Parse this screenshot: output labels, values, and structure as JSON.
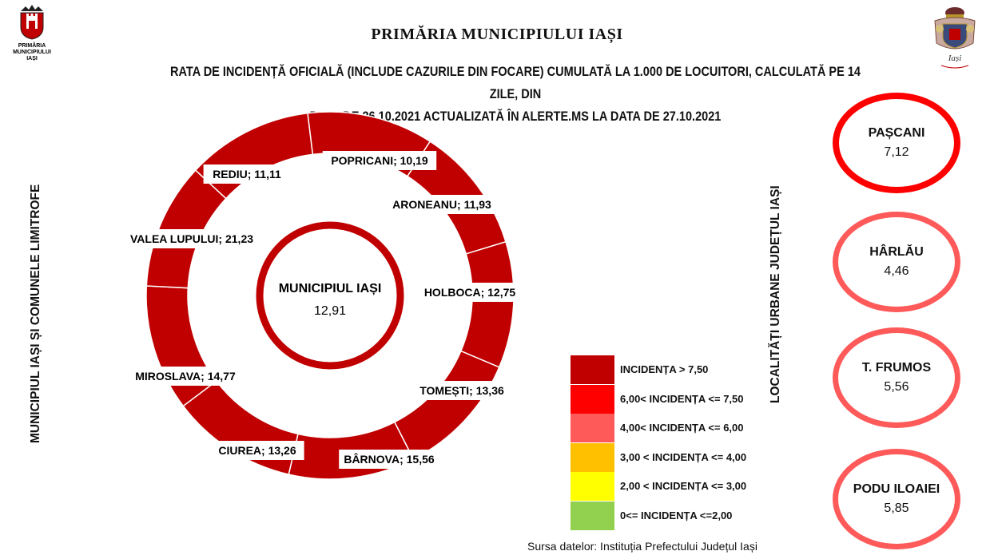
{
  "header": {
    "logo_left_text": [
      "PRIMĂRIA",
      "MUNICIPIULUI",
      "IAȘI"
    ],
    "logo_right_text": "Iași",
    "title": "PRIMĂRIA MUNICIPIULUI IAȘI",
    "subtitle_line1": "RATA DE INCIDENȚĂ OFICIALĂ (INCLUDE CAZURILE DIN FOCARE) CUMULATĂ LA 1.000 DE LOCUITORI, CALCULATĂ PE 14 ZILE, DIN",
    "subtitle_line2": "DATA DE 26.10.2021 ACTUALIZATĂ ÎN ALERTE.MS LA DATA DE 27.10.2021"
  },
  "side_labels": {
    "left": "MUNICIPIUL IAȘI ȘI COMUNELE LIMITROFE",
    "right": "LOCALITĂȚI URBANE JUDEȚUL IAȘI"
  },
  "chart_data": {
    "type": "pie",
    "center": {
      "name": "MUNICIPIUL IAȘI",
      "value": "12,91",
      "color": "#c00000"
    },
    "segments": [
      {
        "name": "POPRICANI",
        "value": 10.19,
        "label": "POPRICANI; 10,19"
      },
      {
        "name": "ARONEANU",
        "value": 11.93,
        "label": "ARONEANU; 11,93"
      },
      {
        "name": "HOLBOCA",
        "value": 12.75,
        "label": "HOLBOCA; 12,75"
      },
      {
        "name": "TOMEȘTI",
        "value": 13.36,
        "label": "TOMEȘTI; 13,36"
      },
      {
        "name": "BÂRNOVA",
        "value": 15.56,
        "label": "BÂRNOVA; 15,56"
      },
      {
        "name": "CIUREA",
        "value": 13.26,
        "label": "CIUREA; 13,26"
      },
      {
        "name": "MIROSLAVA",
        "value": 14.77,
        "label": "MIROSLAVA; 14,77"
      },
      {
        "name": "VALEA LUPULUI",
        "value": 21.23,
        "label": "VALEA LUPULUI; 21,23"
      },
      {
        "name": "REDIU",
        "value": 11.11,
        "label": "REDIU; 11,11"
      }
    ],
    "segment_color": "#c00000",
    "urban_localities": [
      {
        "name": "PAȘCANI",
        "value": "7,12",
        "color": "#ff0000"
      },
      {
        "name": "HÂRLĂU",
        "value": "4,46",
        "color": "#ff5a5a"
      },
      {
        "name": "T. FRUMOS",
        "value": "5,56",
        "color": "#ff5a5a"
      },
      {
        "name": "PODU ILOAIEI",
        "value": "5,85",
        "color": "#ff5a5a"
      }
    ],
    "legend": [
      {
        "label": "INCIDENȚA > 7,50",
        "color": "#c00000"
      },
      {
        "label": "6,00< INCIDENȚA <= 7,50",
        "color": "#ff0000"
      },
      {
        "label": "4,00< INCIDENȚA <= 6,00",
        "color": "#ff5a5a"
      },
      {
        "label": "3,00 < INCIDENȚA <= 4,00",
        "color": "#ffc000"
      },
      {
        "label": " 2,00 < INCIDENȚA <= 3,00",
        "color": "#ffff00"
      },
      {
        "label": "0<= INCIDENȚA <=2,00",
        "color": "#92d050"
      }
    ]
  },
  "footer": {
    "source": "Sursa datelor: Instituția Prefectului Județul Iași"
  }
}
